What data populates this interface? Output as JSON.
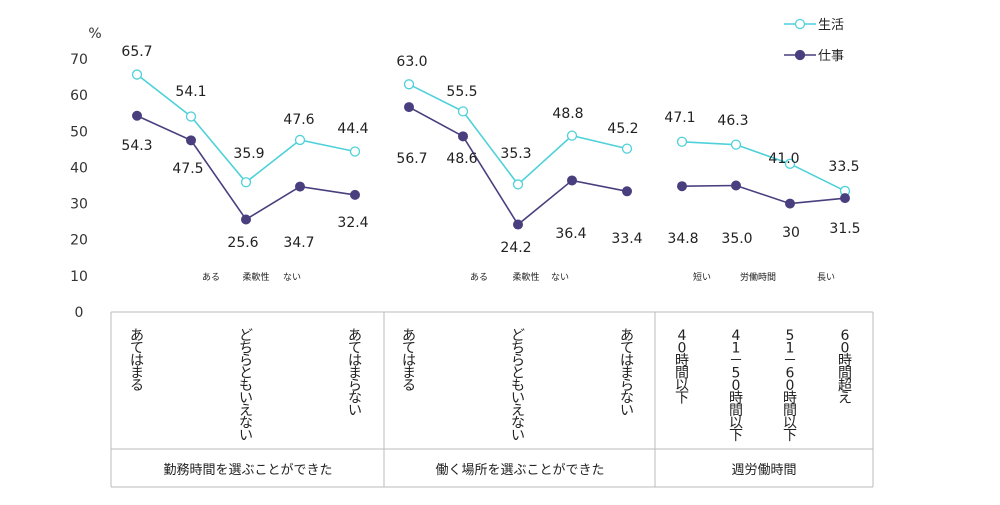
{
  "chart_data": {
    "type": "line",
    "y_unit": "%",
    "ylim": [
      0,
      70
    ],
    "yticks": [
      0,
      10,
      20,
      30,
      40,
      50,
      60,
      70
    ],
    "grid": false,
    "legend_position": "top-right",
    "colors": {
      "生活": "#4fd1d9",
      "仕事": "#4a3f7e",
      "axis": "#bbbbbb"
    },
    "groups": [
      {
        "title": "勤務時間を選ぶことができた",
        "scale_labels": [
          "ある",
          "柔軟性",
          "ない"
        ],
        "categories": [
          "あてはまる",
          "",
          "どちらともいえない",
          "",
          "あてはまらない"
        ],
        "series": [
          {
            "name": "生活",
            "values": [
              65.7,
              54.1,
              35.9,
              47.6,
              44.4
            ],
            "labels": [
              "65.7",
              "54.1",
              "35.9",
              "47.6",
              "44.4"
            ]
          },
          {
            "name": "仕事",
            "values": [
              54.3,
              47.5,
              25.6,
              34.7,
              32.4
            ],
            "labels": [
              "54.3",
              "47.5",
              "25.6",
              "34.7",
              "32.4"
            ]
          }
        ]
      },
      {
        "title": "働く場所を選ぶことができた",
        "scale_labels": [
          "ある",
          "柔軟性",
          "ない"
        ],
        "categories": [
          "あてはまる",
          "",
          "どちらともいえない",
          "",
          "あてはまらない"
        ],
        "series": [
          {
            "name": "生活",
            "values": [
              63.0,
              55.5,
              35.3,
              48.8,
              45.2
            ],
            "labels": [
              "63.0",
              "55.5",
              "35.3",
              "48.8",
              "45.2"
            ]
          },
          {
            "name": "仕事",
            "values": [
              56.7,
              48.6,
              24.2,
              36.4,
              33.4
            ],
            "labels": [
              "56.7",
              "48.6",
              "24.2",
              "36.4",
              "33.4"
            ]
          }
        ]
      },
      {
        "title": "週労働時間",
        "scale_labels": [
          "短い",
          "労働時間",
          "長い"
        ],
        "categories": [
          "40時間以下",
          "41－50時間以下",
          "51－60時間以下",
          "60時間超え"
        ],
        "series": [
          {
            "name": "生活",
            "values": [
              47.1,
              46.3,
              41.0,
              33.5
            ],
            "labels": [
              "47.1",
              "46.3",
              "41.0",
              "33.5"
            ]
          },
          {
            "name": "仕事",
            "values": [
              34.8,
              35.0,
              30.0,
              31.5
            ],
            "labels": [
              "34.8",
              "35.0",
              "30",
              "31.5"
            ]
          }
        ]
      }
    ]
  }
}
